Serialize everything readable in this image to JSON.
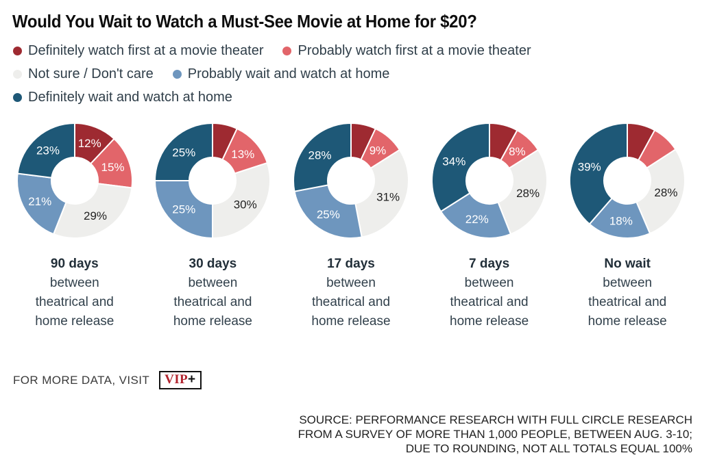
{
  "title": "Would You Wait to Watch a Must-See Movie at Home for $20?",
  "colors": {
    "definitely_theater": "#9E2A31",
    "probably_theater": "#E2656A",
    "not_sure": "#EEEEEC",
    "probably_home": "#6E96BE",
    "definitely_home": "#1E5877",
    "label_on_dark": "#FFFFFF",
    "label_on_light": "#1F1F1F",
    "vip_red": "#B1242E"
  },
  "legend": {
    "items": [
      {
        "label": "Definitely watch first at a movie theater",
        "color_key": "definitely_theater"
      },
      {
        "label": "Probably watch first at a movie theater",
        "color_key": "probably_theater"
      },
      {
        "label": "Not sure / Don't care",
        "color_key": "not_sure"
      },
      {
        "label": "Probably wait and watch at home",
        "color_key": "probably_home"
      },
      {
        "label": "Definitely wait and watch at home",
        "color_key": "definitely_home"
      }
    ]
  },
  "caption_lines": [
    "between",
    "theatrical and",
    "home release"
  ],
  "chart_data": {
    "type": "donut",
    "categories": [
      "Definitely watch first at a movie theater",
      "Probably watch first at a movie theater",
      "Not sure / Don't care",
      "Probably wait and watch at home",
      "Definitely wait and watch at home"
    ],
    "color_keys": [
      "definitely_theater",
      "probably_theater",
      "not_sure",
      "probably_home",
      "definitely_home"
    ],
    "charts": [
      {
        "name": "90 days",
        "values": [
          12,
          15,
          29,
          21,
          23
        ],
        "labels": [
          "12%",
          "15%",
          "29%",
          "21%",
          "23%"
        ]
      },
      {
        "name": "30 days",
        "values": [
          7,
          13,
          30,
          25,
          25
        ],
        "labels": [
          "",
          "13%",
          "30%",
          "25%",
          "25%"
        ]
      },
      {
        "name": "17 days",
        "values": [
          7,
          9,
          31,
          25,
          28
        ],
        "labels": [
          "",
          "9%",
          "31%",
          "25%",
          "28%"
        ]
      },
      {
        "name": "7 days",
        "values": [
          8,
          8,
          28,
          22,
          34
        ],
        "labels": [
          "",
          "8%",
          "28%",
          "22%",
          "34%"
        ]
      },
      {
        "name": "No wait",
        "values": [
          8,
          8,
          28,
          18,
          39
        ],
        "labels": [
          "",
          "",
          "28%",
          "18%",
          "39%"
        ]
      }
    ]
  },
  "footer": {
    "prompt": "FOR MORE DATA, VISIT",
    "logo_vip": "VIP",
    "logo_plus": "+"
  },
  "source": {
    "lines": [
      "SOURCE: PERFORMANCE RESEARCH WITH FULL CIRCLE RESEARCH",
      "FROM A SURVEY OF MORE THAN 1,000 PEOPLE, BETWEEN AUG. 3-10;",
      "DUE TO ROUNDING, NOT ALL TOTALS EQUAL 100%"
    ]
  }
}
